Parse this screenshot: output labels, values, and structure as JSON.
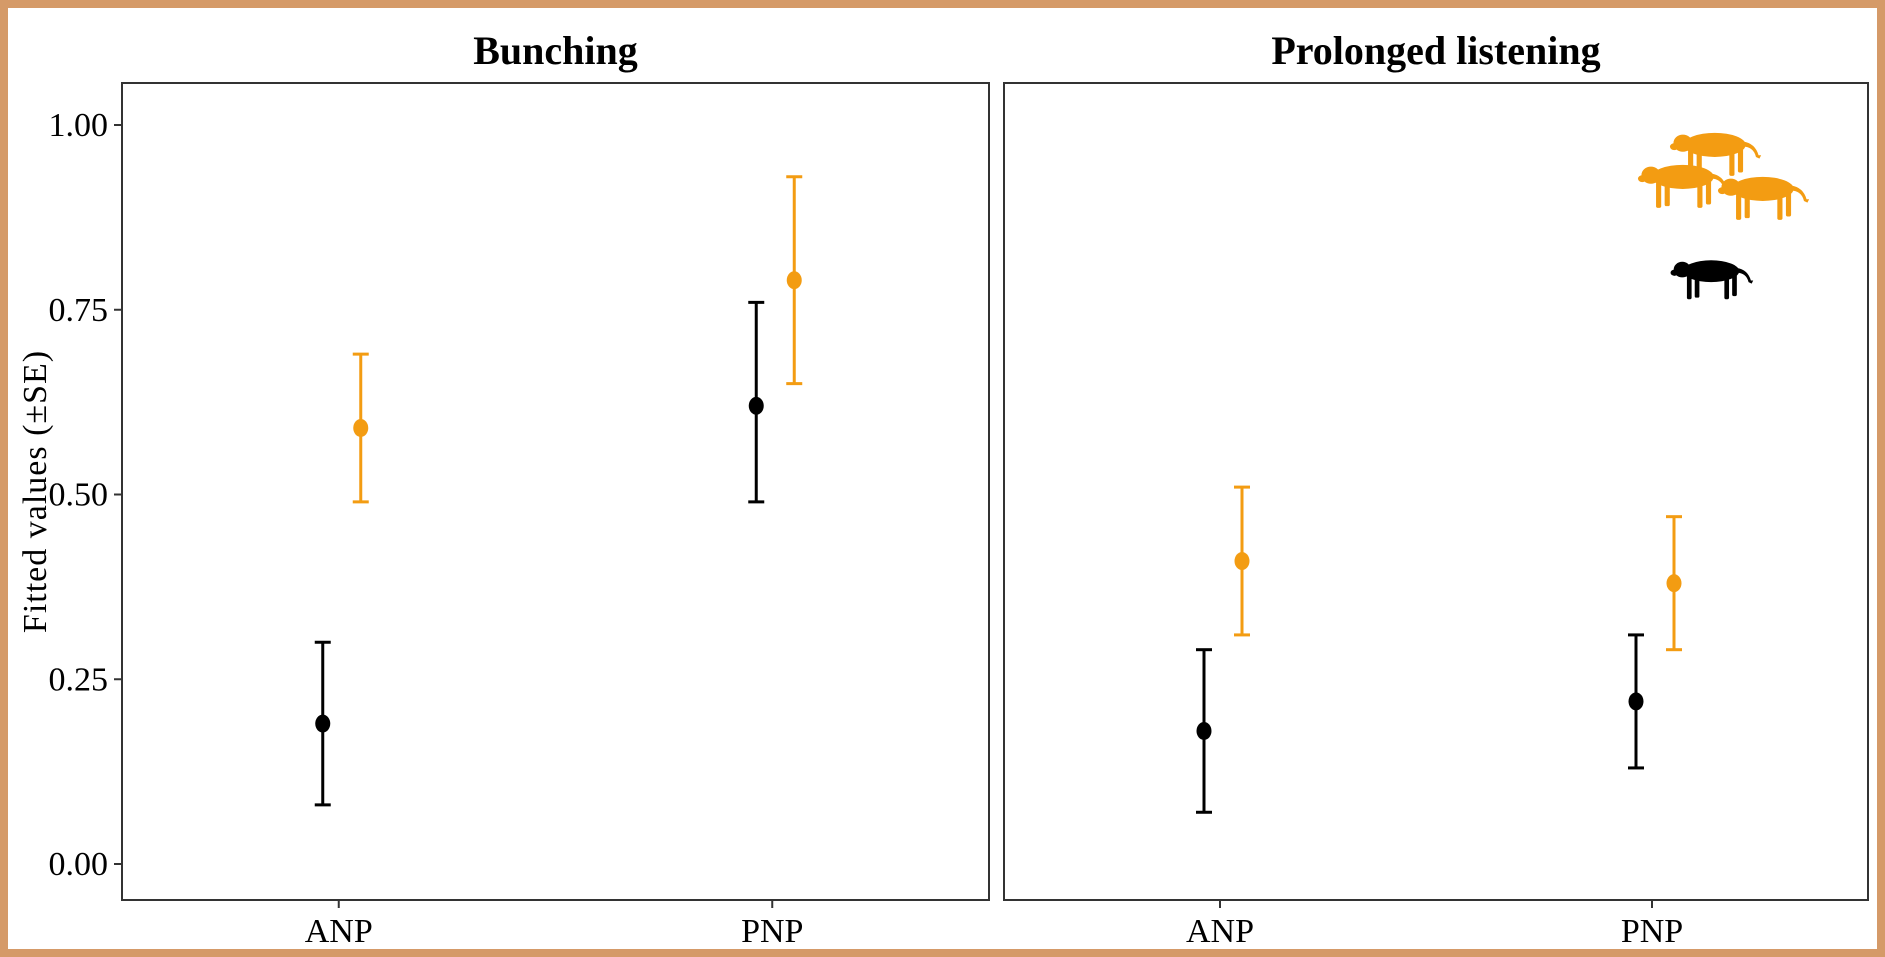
{
  "chart_data": {
    "type": "scatter",
    "ylabel": "Fitted values (±SE)",
    "ylim": [
      0,
      1.05
    ],
    "yticks": [
      "0.00",
      "0.25",
      "0.50",
      "0.75",
      "1.00"
    ],
    "ytick_values": [
      0,
      0.25,
      0.5,
      0.75,
      1.0
    ],
    "categories": [
      "ANP",
      "PNP"
    ],
    "grid": false,
    "legend": "top-right (silhouette icons: group of cheetahs in orange, single cheetah in black)",
    "colors": {
      "single": "#000000",
      "group": "#f39c12"
    },
    "icons": {
      "group": "cheetah-group-icon",
      "single": "cheetah-single-icon"
    },
    "panels": [
      {
        "title": "Bunching",
        "series": [
          {
            "color_key": "single",
            "values": [
              0.19,
              0.62
            ],
            "lower": [
              0.08,
              0.49
            ],
            "upper": [
              0.3,
              0.76
            ]
          },
          {
            "color_key": "group",
            "values": [
              0.59,
              0.79
            ],
            "lower": [
              0.49,
              0.65
            ],
            "upper": [
              0.69,
              0.93
            ]
          }
        ]
      },
      {
        "title": "Prolonged listening",
        "series": [
          {
            "color_key": "single",
            "values": [
              0.18,
              0.22
            ],
            "lower": [
              0.07,
              0.13
            ],
            "upper": [
              0.29,
              0.31
            ]
          },
          {
            "color_key": "group",
            "values": [
              0.41,
              0.38
            ],
            "lower": [
              0.31,
              0.29
            ],
            "upper": [
              0.51,
              0.47
            ]
          }
        ]
      }
    ]
  }
}
